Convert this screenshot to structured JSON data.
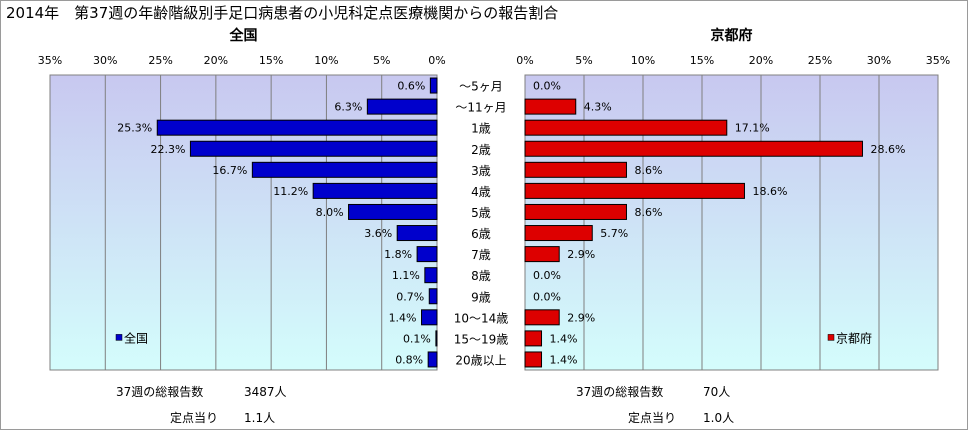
{
  "title": "2014年　第37週の年齢階級別手足口病患者の小児科定点医療機関からの報告割合",
  "chart_data": [
    {
      "type": "bar",
      "orientation": "horizontal",
      "title": "全国",
      "legend": "全国",
      "legend_position": "bottom-left",
      "color": "#0000cc",
      "xlim": [
        0,
        35
      ],
      "xticks": [
        "35%",
        "30%",
        "25%",
        "20%",
        "15%",
        "10%",
        "5%",
        "0%"
      ],
      "x_reversed": true,
      "grid": true,
      "categories": [
        "～5ヶ月",
        "～11ヶ月",
        "1歳",
        "2歳",
        "3歳",
        "4歳",
        "5歳",
        "6歳",
        "7歳",
        "8歳",
        "9歳",
        "10～14歳",
        "15～19歳",
        "20歳以上"
      ],
      "values": [
        0.6,
        6.3,
        25.3,
        22.3,
        16.7,
        11.2,
        8.0,
        3.6,
        1.8,
        1.1,
        0.7,
        1.4,
        0.1,
        0.8
      ],
      "labels": [
        "0.6%",
        "6.3%",
        "25.3%",
        "22.3%",
        "16.7%",
        "11.2%",
        "8.0%",
        "3.6%",
        "1.8%",
        "1.1%",
        "0.7%",
        "1.4%",
        "0.1%",
        "0.8%"
      ]
    },
    {
      "type": "bar",
      "orientation": "horizontal",
      "title": "京都府",
      "legend": "京都府",
      "legend_position": "bottom-right",
      "color": "#dd0000",
      "xlim": [
        0,
        35
      ],
      "xticks": [
        "0%",
        "5%",
        "10%",
        "15%",
        "20%",
        "25%",
        "30%",
        "35%"
      ],
      "grid": true,
      "categories": [
        "～5ヶ月",
        "～11ヶ月",
        "1歳",
        "2歳",
        "3歳",
        "4歳",
        "5歳",
        "6歳",
        "7歳",
        "8歳",
        "9歳",
        "10～14歳",
        "15～19歳",
        "20歳以上"
      ],
      "values": [
        0.0,
        4.3,
        17.1,
        28.6,
        8.6,
        18.6,
        8.6,
        5.7,
        2.9,
        0.0,
        0.0,
        2.9,
        1.4,
        1.4
      ],
      "labels": [
        "0.0%",
        "4.3%",
        "17.1%",
        "28.6%",
        "8.6%",
        "18.6%",
        "8.6%",
        "5.7%",
        "2.9%",
        "0.0%",
        "0.0%",
        "2.9%",
        "1.4%",
        "1.4%"
      ]
    }
  ],
  "summary": {
    "national": {
      "total_label": "37週の総報告数",
      "total_value": "3487人",
      "per_label": "定点当り",
      "per_value": "1.1人"
    },
    "kyoto": {
      "total_label": "37週の総報告数",
      "total_value": "70人",
      "per_label": "定点当り",
      "per_value": "1.0人"
    }
  },
  "colors": {
    "plot_bg_top": "#c8c8f0",
    "plot_bg_bottom": "#d4fdfc"
  }
}
